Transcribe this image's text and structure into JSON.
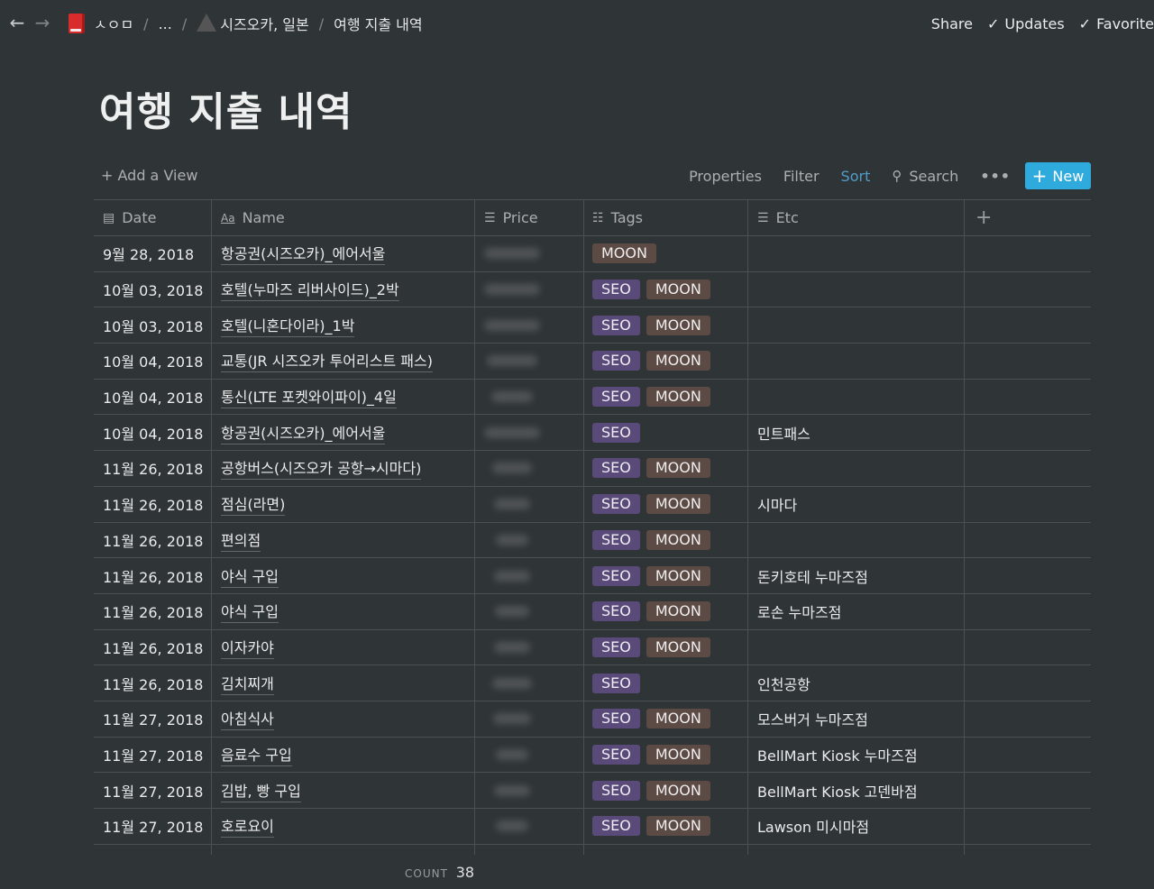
{
  "breadcrumb": {
    "workspace": "ㅅㅇㅁ",
    "ellipsis": "...",
    "parent": "시즈오카, 일본",
    "current": "여행 지출 내역",
    "separator": "/"
  },
  "topbar": {
    "share": "Share",
    "updates": "Updates",
    "favorite": "Favorite"
  },
  "page": {
    "title": "여행 지출 내역"
  },
  "viewbar": {
    "add_view": "+ Add a View",
    "properties": "Properties",
    "filter": "Filter",
    "sort": "Sort",
    "search": "Search",
    "more": "•••",
    "new": "New"
  },
  "columns": {
    "date": "Date",
    "name": "Name",
    "price": "Price",
    "tags": "Tags",
    "etc": "Etc"
  },
  "colors": {
    "background": "#2f3437",
    "accent": "#2eaadc",
    "sort": "#529cca",
    "tag_seo": "#5a4a7a",
    "tag_moon": "#5c4b45"
  },
  "rows": [
    {
      "date": "9월 28, 2018",
      "name": "항공권(시즈오카)_에어서울",
      "tags": [
        "MOON"
      ],
      "etc": ""
    },
    {
      "date": "10월 03, 2018",
      "name": "호텔(누마즈 리버사이드)_2박",
      "tags": [
        "SEO",
        "MOON"
      ],
      "etc": ""
    },
    {
      "date": "10월 03, 2018",
      "name": "호텔(니혼다이라)_1박",
      "tags": [
        "SEO",
        "MOON"
      ],
      "etc": ""
    },
    {
      "date": "10월 04, 2018",
      "name": "교통(JR 시즈오카 투어리스트 패스)",
      "tags": [
        "SEO",
        "MOON"
      ],
      "etc": ""
    },
    {
      "date": "10월 04, 2018",
      "name": "통신(LTE 포켓와이파이)_4일",
      "tags": [
        "SEO",
        "MOON"
      ],
      "etc": ""
    },
    {
      "date": "10월 04, 2018",
      "name": "항공권(시즈오카)_에어서울",
      "tags": [
        "SEO"
      ],
      "etc": "민트패스"
    },
    {
      "date": "11월 26, 2018",
      "name": "공항버스(시즈오카 공항→시마다)",
      "tags": [
        "SEO",
        "MOON"
      ],
      "etc": ""
    },
    {
      "date": "11월 26, 2018",
      "name": "점심(라면)",
      "tags": [
        "SEO",
        "MOON"
      ],
      "etc": "시마다"
    },
    {
      "date": "11월 26, 2018",
      "name": "편의점",
      "tags": [
        "SEO",
        "MOON"
      ],
      "etc": ""
    },
    {
      "date": "11월 26, 2018",
      "name": "야식 구입",
      "tags": [
        "SEO",
        "MOON"
      ],
      "etc": "돈키호테 누마즈점"
    },
    {
      "date": "11월 26, 2018",
      "name": "야식 구입",
      "tags": [
        "SEO",
        "MOON"
      ],
      "etc": "로손 누마즈점"
    },
    {
      "date": "11월 26, 2018",
      "name": "이자카야",
      "tags": [
        "SEO",
        "MOON"
      ],
      "etc": ""
    },
    {
      "date": "11월 26, 2018",
      "name": "김치찌개",
      "tags": [
        "SEO"
      ],
      "etc": "인천공항"
    },
    {
      "date": "11월 27, 2018",
      "name": "아침식사",
      "tags": [
        "SEO",
        "MOON"
      ],
      "etc": "모스버거 누마즈점"
    },
    {
      "date": "11월 27, 2018",
      "name": "음료수 구입",
      "tags": [
        "SEO",
        "MOON"
      ],
      "etc": "BellMart Kiosk 누마즈점"
    },
    {
      "date": "11월 27, 2018",
      "name": "김밥, 빵 구입",
      "tags": [
        "SEO",
        "MOON"
      ],
      "etc": "BellMart Kiosk 고덴바점"
    },
    {
      "date": "11월 27, 2018",
      "name": "호로요이",
      "tags": [
        "SEO",
        "MOON"
      ],
      "etc": "Lawson 미시마점"
    }
  ],
  "footer": {
    "count_label": "COUNT",
    "count_value": "38"
  }
}
